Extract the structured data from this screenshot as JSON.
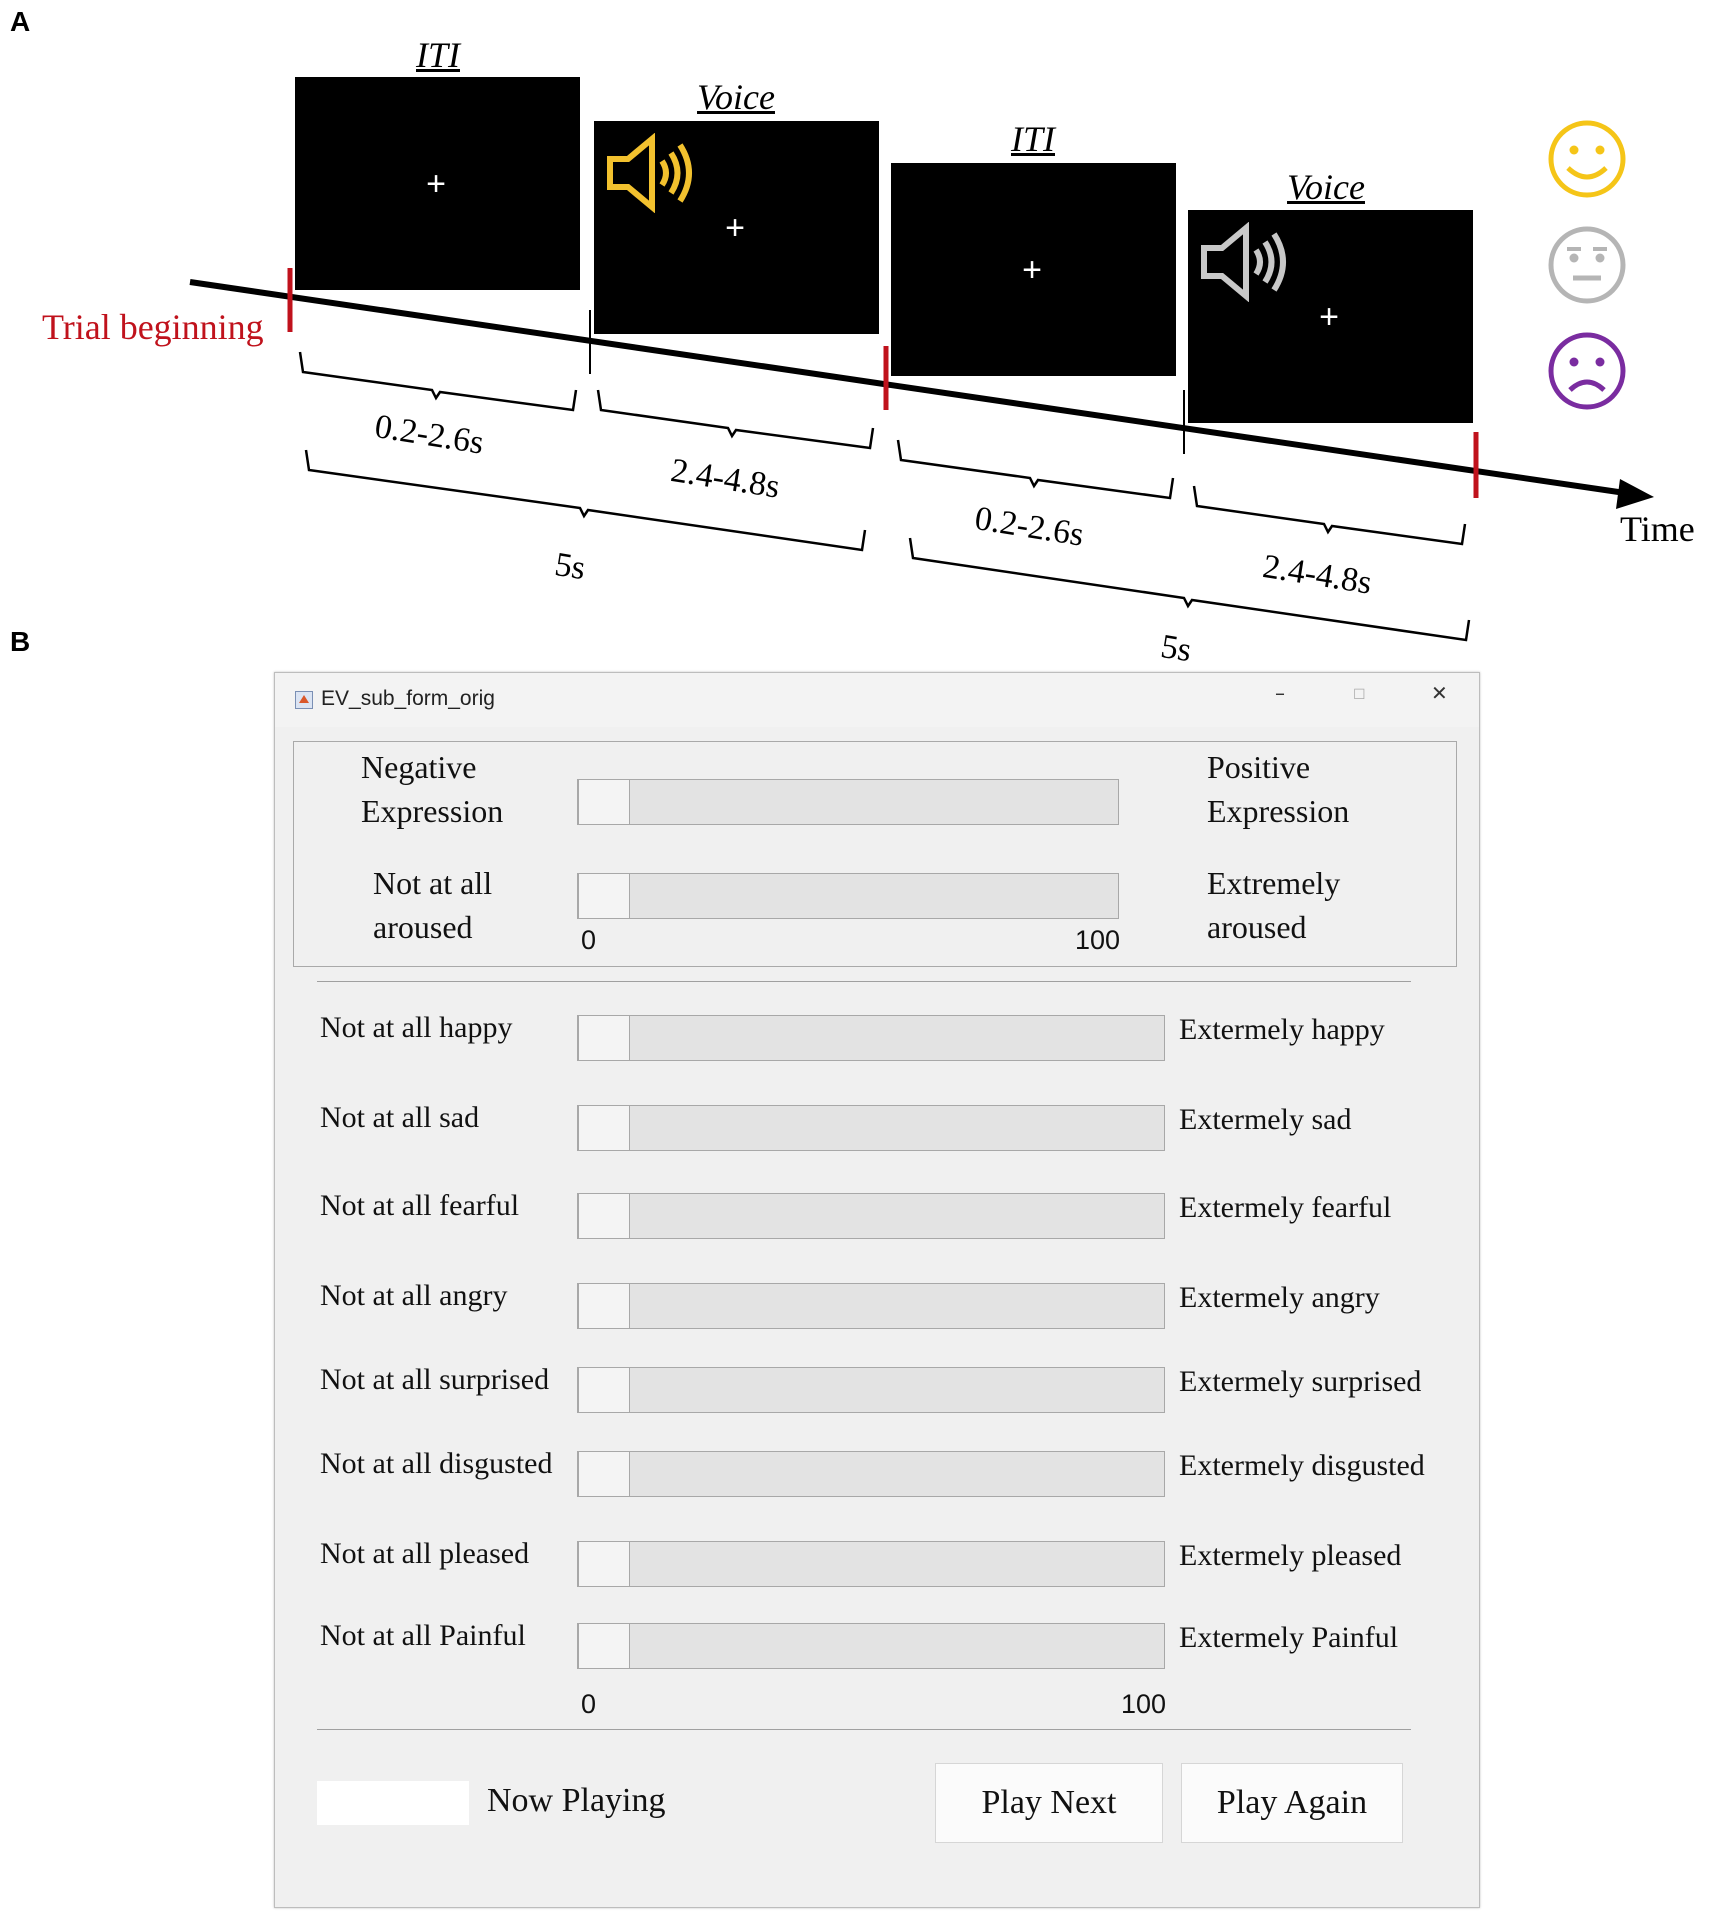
{
  "panels": {
    "a": "A",
    "b": "B"
  },
  "panel_a": {
    "screens": [
      {
        "label": "ITI",
        "cross": "+"
      },
      {
        "label": "Voice",
        "cross": "+"
      },
      {
        "label": "ITI",
        "cross": "+"
      },
      {
        "label": "Voice",
        "cross": "+"
      }
    ],
    "trial_beginning": "Trial beginning",
    "time_label": "Time",
    "durations": [
      "0.2-2.6s",
      "2.4-4.8s",
      "0.2-2.6s",
      "2.4-4.8s"
    ],
    "totals": [
      "5s",
      "5s"
    ],
    "colors": {
      "accent_red": "#c0121c",
      "speaker_yellow": "#f2c12e",
      "speaker_gray": "#c8c8c8",
      "happy": "#f5c518",
      "neutral": "#b5b5b5",
      "sad": "#7a2ca0"
    },
    "faces": [
      "happy-face-icon",
      "neutral-face-icon",
      "sad-face-icon"
    ]
  },
  "panel_b": {
    "window_title": "EV_sub_form_orig",
    "window_controls": {
      "minimize": "–",
      "maximize": "☐",
      "close": "✕"
    },
    "top_scales": [
      {
        "left_line1": "Negative",
        "left_line2": "Expression",
        "right_line1": "Positive",
        "right_line2": "Expression",
        "value": 0
      },
      {
        "left_line1": "Not at all",
        "left_line2": "aroused",
        "right_line1": "Extremely",
        "right_line2": "aroused",
        "value": 0
      }
    ],
    "top_ticks": {
      "min": "0",
      "max": "100"
    },
    "emotion_scales": [
      {
        "left": "Not at all happy",
        "right": "Extermely happy",
        "value": 0
      },
      {
        "left": "Not at all sad",
        "right": "Extermely sad",
        "value": 0
      },
      {
        "left": "Not at all fearful",
        "right": "Extermely fearful",
        "value": 0
      },
      {
        "left": "Not at all angry",
        "right": "Extermely angry",
        "value": 0
      },
      {
        "left": "Not at all surprised",
        "right": "Extermely surprised",
        "value": 0
      },
      {
        "left": "Not at all disgusted",
        "right": "Extermely disgusted",
        "value": 0
      },
      {
        "left": "Not at all pleased",
        "right": "Extermely pleased",
        "value": 0
      },
      {
        "left": "Not at all Painful",
        "right": "Extermely Painful",
        "value": 0
      }
    ],
    "bottom_ticks": {
      "min": "0",
      "max": "100"
    },
    "now_playing": "Now Playing",
    "buttons": {
      "play_next": "Play Next",
      "play_again": "Play Again"
    }
  }
}
